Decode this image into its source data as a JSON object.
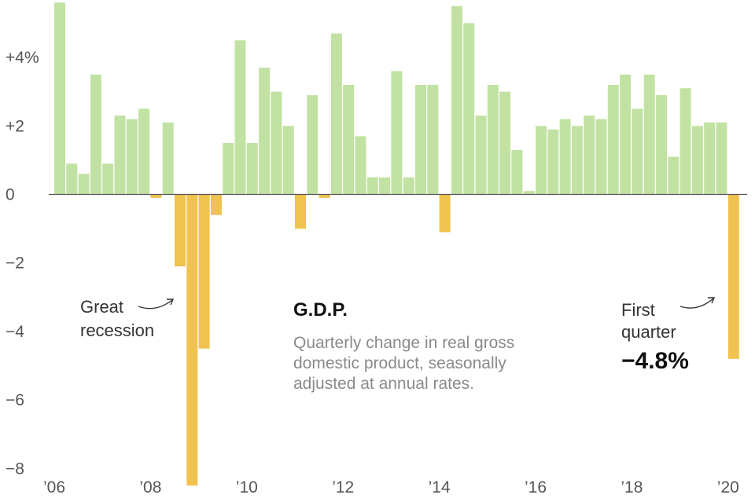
{
  "chart_data": {
    "type": "bar",
    "title": "G.D.P.",
    "subtitle_lines": [
      "Quarterly change in real gross",
      "domestic product, seasonally",
      "adjusted at annual rates."
    ],
    "unit": "%",
    "ylim": [
      -8.6,
      5.8
    ],
    "y_ticks": [
      {
        "value": 4,
        "label": "+4%"
      },
      {
        "value": 2,
        "label": "+2"
      },
      {
        "value": 0,
        "label": "0"
      },
      {
        "value": -2,
        "label": "−2"
      },
      {
        "value": -4,
        "label": "−4"
      },
      {
        "value": -6,
        "label": "−6"
      },
      {
        "value": -8,
        "label": "−8"
      }
    ],
    "x_ticks": [
      {
        "index": 0,
        "label": "’06"
      },
      {
        "index": 8,
        "label": "’08"
      },
      {
        "index": 16,
        "label": "’10"
      },
      {
        "index": 24,
        "label": "’12"
      },
      {
        "index": 32,
        "label": "’14"
      },
      {
        "index": 40,
        "label": "’16"
      },
      {
        "index": 48,
        "label": "’18"
      },
      {
        "index": 56,
        "label": "’20"
      }
    ],
    "values": [
      5.6,
      0.9,
      0.6,
      3.5,
      0.9,
      2.3,
      2.2,
      2.5,
      -0.1,
      2.1,
      -2.1,
      -8.5,
      -4.5,
      -0.6,
      1.5,
      4.5,
      1.5,
      3.7,
      3.0,
      2.0,
      -1.0,
      2.9,
      -0.1,
      4.7,
      3.2,
      1.7,
      0.5,
      0.5,
      3.6,
      0.5,
      3.2,
      3.2,
      -1.1,
      5.5,
      5.0,
      2.3,
      3.2,
      3.0,
      1.3,
      0.1,
      2.0,
      1.9,
      2.2,
      2.0,
      2.3,
      2.2,
      3.2,
      3.5,
      2.5,
      3.5,
      2.9,
      1.1,
      3.1,
      2.0,
      2.1,
      2.1,
      -4.8
    ],
    "series_colors": {
      "positive": "#c2e2a3",
      "negative": "#f0c24f"
    },
    "annotations": {
      "recession": {
        "lines": [
          "Great",
          "recession"
        ]
      },
      "first_quarter": {
        "lines": [
          "First",
          "quarter"
        ],
        "value": "−4.8%"
      }
    }
  }
}
